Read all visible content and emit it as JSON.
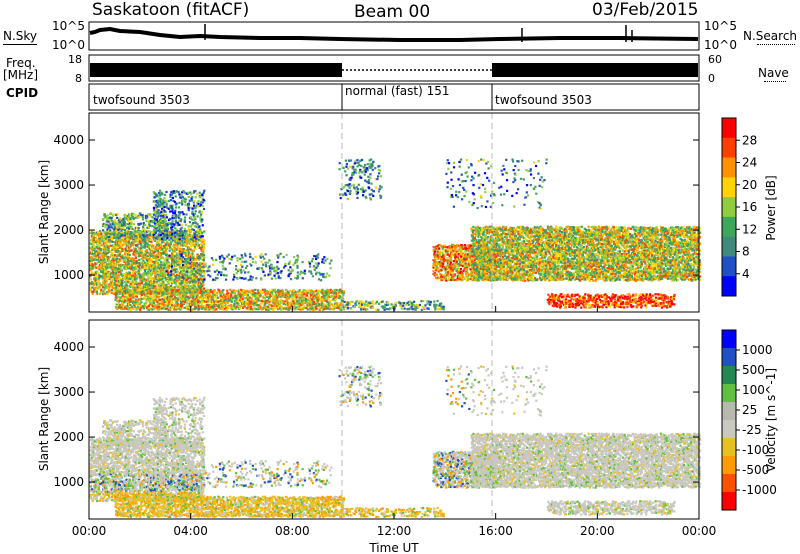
{
  "header": {
    "station": "Saskatoon (fitACF)",
    "beam": "Beam 00",
    "date": "03/Feb/2015"
  },
  "noise_panel": {
    "left_label": "N.Sky",
    "right_label": "N.Search",
    "y_top": "10^5",
    "y_bottom": "10^0"
  },
  "freq_panel": {
    "left_label_1": "Freq.",
    "left_label_2": "[MHz]",
    "y_left_top": "18",
    "y_left_bottom": "8",
    "y_right_top": "60",
    "y_right_bottom": "0",
    "right_label": "Nave"
  },
  "cpid_panel": {
    "label": "CPID",
    "segments": [
      {
        "name": "twofsound 3503",
        "start_hour": 0,
        "end_hour": 10
      },
      {
        "name": "normal (fast) 151",
        "start_hour": 10,
        "end_hour": 16
      },
      {
        "name": "twofsound 3503",
        "start_hour": 16,
        "end_hour": 24
      }
    ]
  },
  "colors": {
    "power": [
      "#0000ff",
      "#2050c8",
      "#3f8a7a",
      "#3da85a",
      "#8fcc40",
      "#ffd400",
      "#ff9000",
      "#ff4000",
      "#ff0000"
    ],
    "velocity": [
      "#ff0000",
      "#ff5000",
      "#ff9a00",
      "#e8c020",
      "#c8c8c0",
      "#b8b8b0",
      "#60c040",
      "#208850",
      "#2050c8",
      "#0000ff"
    ]
  },
  "chart_data": [
    {
      "type": "heatmap",
      "name": "power",
      "xlabel": "",
      "ylabel": "Slant Range [km]",
      "x_ticks": [
        "00:00",
        "04:00",
        "08:00",
        "12:00",
        "16:00",
        "20:00",
        "00:00"
      ],
      "y_ticks": [
        1000,
        2000,
        3000,
        4000
      ],
      "ylim": [
        180,
        4600
      ],
      "xlim": [
        0,
        24
      ],
      "colorbar_label": "Power [dB]",
      "colorbar_ticks": [
        "4",
        "8",
        "12",
        "16",
        "20",
        "24",
        "28"
      ],
      "colorbar_range": [
        0,
        30
      ]
    },
    {
      "type": "heatmap",
      "name": "velocity",
      "xlabel": "Time UT",
      "ylabel": "Slant Range [km]",
      "x_ticks": [
        "00:00",
        "04:00",
        "08:00",
        "12:00",
        "16:00",
        "20:00",
        "00:00"
      ],
      "y_ticks": [
        1000,
        2000,
        3000,
        4000
      ],
      "ylim": [
        180,
        4600
      ],
      "xlim": [
        0,
        24
      ],
      "colorbar_label": "Velocity [m s^-1]",
      "colorbar_ticks": [
        "1000",
        "500",
        "100",
        "25",
        "-25",
        "-100",
        "-500",
        "-1000"
      ]
    }
  ]
}
